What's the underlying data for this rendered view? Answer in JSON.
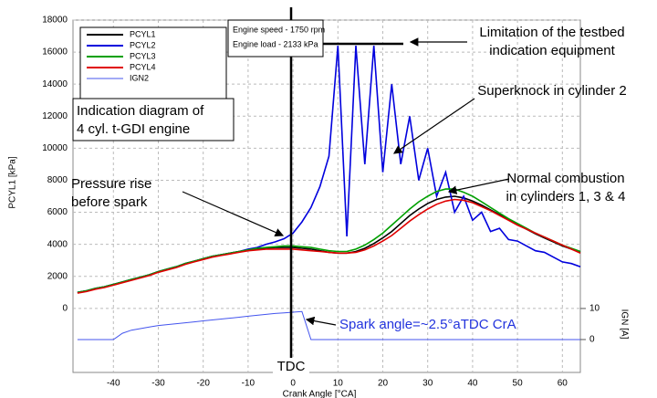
{
  "chart_data": {
    "type": "line",
    "ylabel": "PCYL1 [kPa]",
    "y2label": "IGN [A]",
    "xlabel": "Crank Angle [°CA]",
    "x": [
      -48,
      -46,
      -44,
      -42,
      -40,
      -38,
      -36,
      -34,
      -32,
      -30,
      -28,
      -26,
      -24,
      -22,
      -20,
      -18,
      -16,
      -14,
      -12,
      -10,
      -8,
      -6,
      -4,
      -2,
      0,
      2,
      4,
      6,
      8,
      10,
      12,
      14,
      16,
      18,
      20,
      22,
      24,
      26,
      28,
      30,
      32,
      34,
      36,
      38,
      40,
      42,
      44,
      46,
      48,
      50,
      52,
      54,
      56,
      58,
      60,
      62,
      64
    ],
    "xlim": [
      -49,
      64
    ],
    "xticks": [
      -40,
      -30,
      -20,
      -10,
      0,
      10,
      20,
      30,
      40,
      50,
      60
    ],
    "ylim": [
      -4000,
      18000
    ],
    "yticks": [
      0,
      2000,
      4000,
      6000,
      8000,
      10000,
      12000,
      14000,
      16000,
      18000
    ],
    "y2lim": [
      -10.6,
      102.9
    ],
    "y2ticks": [
      0,
      10
    ],
    "grid": true,
    "series": [
      {
        "name": "PCYL1",
        "color": "#000000",
        "values": [
          1000,
          1100,
          1250,
          1350,
          1500,
          1650,
          1800,
          1950,
          2100,
          2300,
          2450,
          2600,
          2800,
          2950,
          3100,
          3250,
          3350,
          3450,
          3550,
          3650,
          3700,
          3750,
          3800,
          3800,
          3800,
          3750,
          3700,
          3600,
          3500,
          3450,
          3450,
          3550,
          3750,
          4050,
          4400,
          4800,
          5300,
          5800,
          6200,
          6550,
          6800,
          6950,
          7000,
          6900,
          6700,
          6450,
          6150,
          5850,
          5550,
          5250,
          4950,
          4650,
          4400,
          4150,
          3900,
          3700,
          3500
        ]
      },
      {
        "name": "PCYL2",
        "color": "#0000dd",
        "values": [
          1000,
          1100,
          1250,
          1350,
          1500,
          1650,
          1800,
          1950,
          2100,
          2300,
          2450,
          2600,
          2800,
          2950,
          3100,
          3250,
          3350,
          3450,
          3550,
          3700,
          3800,
          4000,
          4150,
          4350,
          4700,
          5400,
          6300,
          7600,
          9500,
          16400,
          4500,
          16400,
          9000,
          16400,
          8500,
          14000,
          9000,
          12000,
          8000,
          10000,
          7000,
          8500,
          6000,
          7000,
          5500,
          6000,
          4800,
          5000,
          4300,
          4200,
          3900,
          3600,
          3500,
          3200,
          2900,
          2800,
          2600
        ]
      },
      {
        "name": "PCYL3",
        "color": "#00a000",
        "values": [
          1000,
          1100,
          1250,
          1350,
          1500,
          1650,
          1800,
          1950,
          2100,
          2300,
          2450,
          2600,
          2800,
          2950,
          3100,
          3250,
          3350,
          3450,
          3550,
          3650,
          3750,
          3800,
          3850,
          3900,
          3900,
          3850,
          3800,
          3700,
          3600,
          3550,
          3550,
          3700,
          3950,
          4300,
          4700,
          5200,
          5700,
          6200,
          6650,
          7000,
          7300,
          7450,
          7450,
          7250,
          7000,
          6650,
          6300,
          5950,
          5600,
          5300,
          5000,
          4700,
          4450,
          4200,
          3950,
          3750,
          3550
        ]
      },
      {
        "name": "PCYL4",
        "color": "#e00000",
        "values": [
          950,
          1050,
          1200,
          1300,
          1450,
          1600,
          1750,
          1900,
          2050,
          2250,
          2400,
          2550,
          2750,
          2900,
          3050,
          3200,
          3300,
          3400,
          3500,
          3600,
          3650,
          3700,
          3700,
          3700,
          3700,
          3650,
          3600,
          3550,
          3500,
          3450,
          3450,
          3500,
          3650,
          3900,
          4200,
          4550,
          5000,
          5450,
          5850,
          6200,
          6500,
          6700,
          6800,
          6750,
          6600,
          6350,
          6100,
          5800,
          5500,
          5200,
          4950,
          4700,
          4450,
          4200,
          3950,
          3700,
          3450
        ]
      },
      {
        "name": "IGN2",
        "color": "#4455ee",
        "axis": "y2",
        "values": [
          0,
          0,
          0,
          0,
          0,
          2,
          3,
          3.5,
          4,
          4.5,
          4.8,
          5.1,
          5.4,
          5.7,
          6,
          6.3,
          6.6,
          6.9,
          7.2,
          7.5,
          7.8,
          8.1,
          8.4,
          8.6,
          8.8,
          9,
          0,
          0,
          0,
          0,
          0,
          0,
          0,
          0,
          0,
          0,
          0,
          0,
          0,
          0,
          0,
          0,
          0,
          0,
          0,
          0,
          0,
          0,
          0,
          0,
          0,
          0,
          0,
          0,
          0,
          0,
          0
        ]
      }
    ],
    "info": [
      "Engine speed - 1750 rpm",
      "Engine load - 2133 kPa"
    ],
    "annotations": [
      {
        "text": [
          "Limitation of the testbed",
          "indication equipment"
        ]
      },
      {
        "text": [
          "Superknock in cylinder 2"
        ]
      },
      {
        "text": [
          "Indication diagram of",
          "4 cyl. t-GDI engine"
        ]
      },
      {
        "text": [
          "Pressure rise",
          "before spark"
        ]
      },
      {
        "text": [
          "Normal combustion",
          "in cylinders 1, 3 & 4"
        ]
      },
      {
        "text": [
          "Spark angle=~2.5°aTDC CrA"
        ]
      },
      {
        "text": [
          "TDC"
        ]
      }
    ]
  }
}
